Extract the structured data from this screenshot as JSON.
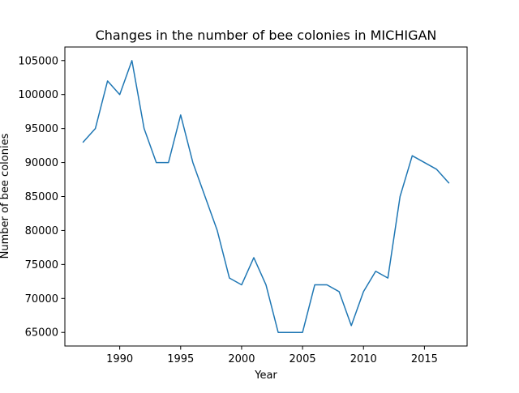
{
  "chart_data": {
    "type": "line",
    "title": "Changes in the number of bee colonies in MICHIGAN",
    "xlabel": "Year",
    "ylabel": "Number of bee colonies",
    "x": [
      1987,
      1988,
      1989,
      1990,
      1991,
      1992,
      1993,
      1994,
      1995,
      1996,
      1997,
      1998,
      1999,
      2000,
      2001,
      2002,
      2003,
      2004,
      2005,
      2006,
      2007,
      2008,
      2009,
      2010,
      2011,
      2012,
      2013,
      2014,
      2015,
      2016,
      2017
    ],
    "series": [
      {
        "values": [
          93000,
          95000,
          102000,
          100000,
          105000,
          95000,
          90000,
          90000,
          97000,
          90000,
          85000,
          80000,
          73000,
          72000,
          76000,
          72000,
          65000,
          65000,
          65000,
          72000,
          72000,
          71000,
          66000,
          71000,
          74000,
          73000,
          85000,
          91000,
          90000,
          89000,
          87000
        ],
        "color": "#1f77b4"
      }
    ],
    "xlim": [
      1985.5,
      2018.5
    ],
    "ylim": [
      63000,
      107000
    ],
    "xticks": [
      "1990",
      "1995",
      "2000",
      "2005",
      "2010",
      "2015"
    ],
    "yticks": [
      "65000",
      "70000",
      "75000",
      "80000",
      "85000",
      "90000",
      "95000",
      "100000",
      "105000"
    ],
    "grid": false,
    "legend": false
  }
}
